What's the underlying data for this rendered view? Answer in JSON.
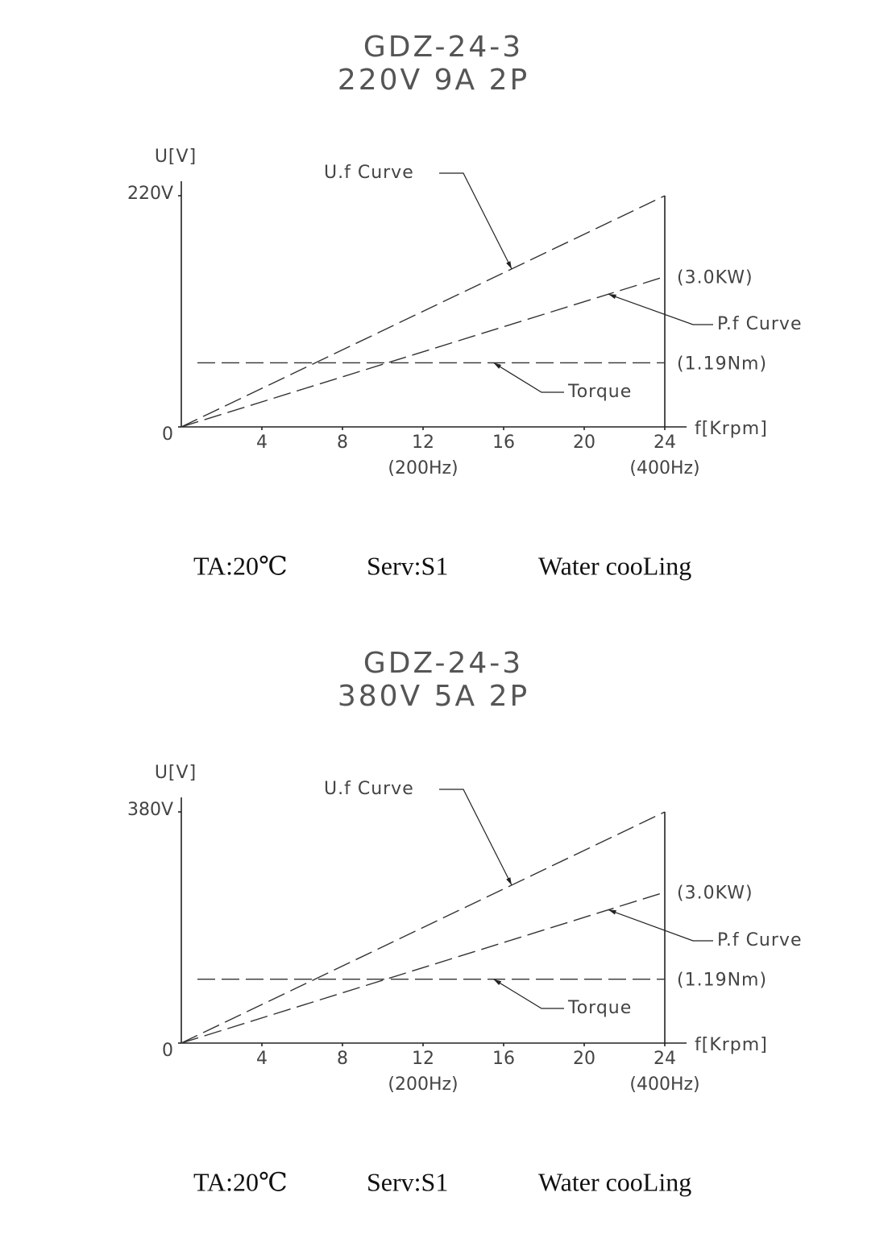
{
  "chart_data": [
    {
      "type": "line",
      "title": "GDZ-24-3",
      "subtitle": "220V 9A  2P",
      "y_label": "U[V]",
      "x_label": "f[Krpm]",
      "xlim": [
        0,
        24
      ],
      "xticks": [
        4,
        8,
        12,
        16,
        20,
        24
      ],
      "ylim": [
        0,
        220
      ],
      "yticks": [
        0,
        {
          "value": 220,
          "label": "220V"
        }
      ],
      "x_sublabels": [
        {
          "x": 12,
          "label": "(200Hz)"
        },
        {
          "x": 24,
          "label": "(400Hz)"
        }
      ],
      "series": [
        {
          "name": "U.f Curve",
          "color": "#333333",
          "x": [
            0,
            24
          ],
          "values": [
            0,
            220
          ]
        },
        {
          "name": "P.f Curve",
          "color": "#333333",
          "x": [
            0,
            24
          ],
          "values": [
            0,
            143
          ],
          "end_label": "(3.0KW)"
        },
        {
          "name": "Torque",
          "color": "#333333",
          "x": [
            0.8,
            24
          ],
          "values": [
            61,
            61
          ],
          "end_label": "(1.19Nm)"
        }
      ],
      "notes": [
        "TA:20℃",
        "Serv:S1",
        "Water cooLing"
      ]
    },
    {
      "type": "line",
      "title": "GDZ-24-3",
      "subtitle": "380V 5A  2P",
      "y_label": "U[V]",
      "x_label": "f[Krpm]",
      "xlim": [
        0,
        24
      ],
      "xticks": [
        4,
        8,
        12,
        16,
        20,
        24
      ],
      "ylim": [
        0,
        380
      ],
      "yticks": [
        0,
        {
          "value": 380,
          "label": "380V"
        }
      ],
      "x_sublabels": [
        {
          "x": 12,
          "label": "(200Hz)"
        },
        {
          "x": 24,
          "label": "(400Hz)"
        }
      ],
      "series": [
        {
          "name": "U.f Curve",
          "color": "#333333",
          "x": [
            0,
            24
          ],
          "values": [
            0,
            380
          ]
        },
        {
          "name": "P.f Curve",
          "color": "#333333",
          "x": [
            0,
            24
          ],
          "values": [
            0,
            248
          ],
          "end_label": "(3.0KW)"
        },
        {
          "name": "Torque",
          "color": "#333333",
          "x": [
            0.8,
            24
          ],
          "values": [
            105,
            105
          ],
          "end_label": "(1.19Nm)"
        }
      ],
      "notes": [
        "TA:20℃",
        "Serv:S1",
        "Water cooLing"
      ]
    }
  ]
}
